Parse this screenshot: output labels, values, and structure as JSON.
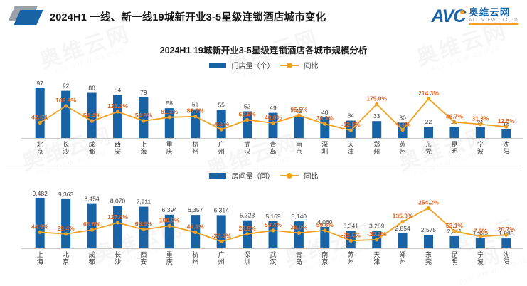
{
  "header": {
    "title": "2024H1  一线、新一线19城新开业3-5星级连锁酒店城市变化",
    "logo": {
      "abbr": "AVC",
      "name": "奥维云网",
      "tagline": "ALL VIEW CLOUD"
    }
  },
  "watermark": {
    "text": "奥维云网",
    "subtext": "ALL VIEW CLOUD"
  },
  "chart_title": "2024H1  19城新开业3-5星级连锁酒店各城市规模分析",
  "colors": {
    "bar": "#1763a6",
    "line": "#f2a222",
    "pct_label": "#e2611c",
    "value_label": "#3f3f3f",
    "city_label": "#333333",
    "axis": "#c9c9c9"
  },
  "chart_data": [
    {
      "type": "bar",
      "legend_bar": "门店量（个）",
      "legend_line": "同比",
      "categories": [
        "北京",
        "长沙",
        "成都",
        "西安",
        "上海",
        "重庆",
        "杭州",
        "广州",
        "武汉",
        "青岛",
        "南京",
        "深圳",
        "天津",
        "郑州",
        "苏州",
        "东莞",
        "昆明",
        "宁波",
        "沈阳"
      ],
      "series": [
        {
          "name": "门店量（个）",
          "kind": "bar",
          "values": [
            97,
            92,
            88,
            84,
            79,
            58,
            56,
            55,
            52,
            49,
            43,
            40,
            34,
            33,
            30,
            22,
            22,
            21,
            18
          ]
        },
        {
          "name": "同比",
          "kind": "line",
          "unit": "%",
          "values": [
            42.6,
            162.9,
            54.4,
            121.1,
            54.9,
            81.3,
            86.7,
            -6.8,
            62.5,
            40.0,
            95.5,
            33.3,
            -12.8,
            175.0,
            -9.1,
            214.3,
            46.7,
            31.3,
            12.5
          ]
        }
      ]
    },
    {
      "type": "bar",
      "legend_bar": "房间量（间）",
      "legend_line": "同比",
      "categories": [
        "上海",
        "北京",
        "成都",
        "长沙",
        "西安",
        "重庆",
        "杭州",
        "广州",
        "深圳",
        "武汉",
        "青岛",
        "南京",
        "苏州",
        "天津",
        "郑州",
        "东莞",
        "昆明",
        "宁波",
        "沈阳"
      ],
      "series": [
        {
          "name": "房间量（间）",
          "kind": "bar",
          "values": [
            9482,
            9363,
            8454,
            8070,
            7911,
            6394,
            6357,
            6314,
            5323,
            5169,
            5140,
            4060,
            3341,
            3289,
            2854,
            2575,
            2311,
            1995,
            1883
          ]
        },
        {
          "name": "同比",
          "kind": "line",
          "unit": "%",
          "values": [
            44.9,
            29.4,
            63.6,
            127.4,
            66.6,
            100.0,
            44.1,
            -37.4,
            28.9,
            59.4,
            38.0,
            59.6,
            -29.6,
            -20.2,
            135.9,
            254.2,
            53.1,
            7.5,
            20.7
          ]
        }
      ]
    }
  ]
}
